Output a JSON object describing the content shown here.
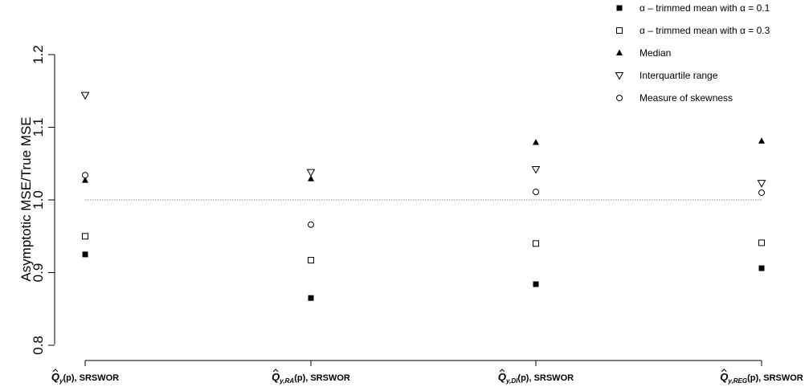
{
  "chart_data": {
    "type": "scatter",
    "ylabel": "Asymptotic MSE/True MSE",
    "ylim": [
      0.78,
      1.26
    ],
    "y_ticks": [
      "0.8",
      "0.9",
      "1.0",
      "1.1",
      "1.2"
    ],
    "reference_line": 1.0,
    "categories": [
      {
        "base": "Q",
        "sub": "y",
        "suffix": "(p), SRSWOR"
      },
      {
        "base": "Q",
        "sub": "y,RA",
        "suffix": "(p), SRSWOR"
      },
      {
        "base": "Q",
        "sub": "y,DI",
        "suffix": "(p), SRSWOR"
      },
      {
        "base": "Q",
        "sub": "y,REG",
        "suffix": "(p), SRSWOR"
      }
    ],
    "series": [
      {
        "name": "α – trimmed mean with α = 0.1",
        "marker": "filled-square",
        "values": [
          0.925,
          0.865,
          0.884,
          0.906
        ]
      },
      {
        "name": "α – trimmed mean with α = 0.3",
        "marker": "open-square",
        "values": [
          0.95,
          0.917,
          0.94,
          0.941
        ]
      },
      {
        "name": "Median",
        "marker": "filled-triangle-up",
        "values": [
          1.027,
          1.029,
          1.079,
          1.081
        ]
      },
      {
        "name": "Interquartile range",
        "marker": "open-triangle-down",
        "values": [
          1.144,
          1.038,
          1.042,
          1.023
        ]
      },
      {
        "name": "Measure of skewness",
        "marker": "open-circle",
        "values": [
          1.034,
          0.966,
          1.011,
          1.01
        ]
      }
    ],
    "legend_position": "top-right",
    "grid": false
  }
}
